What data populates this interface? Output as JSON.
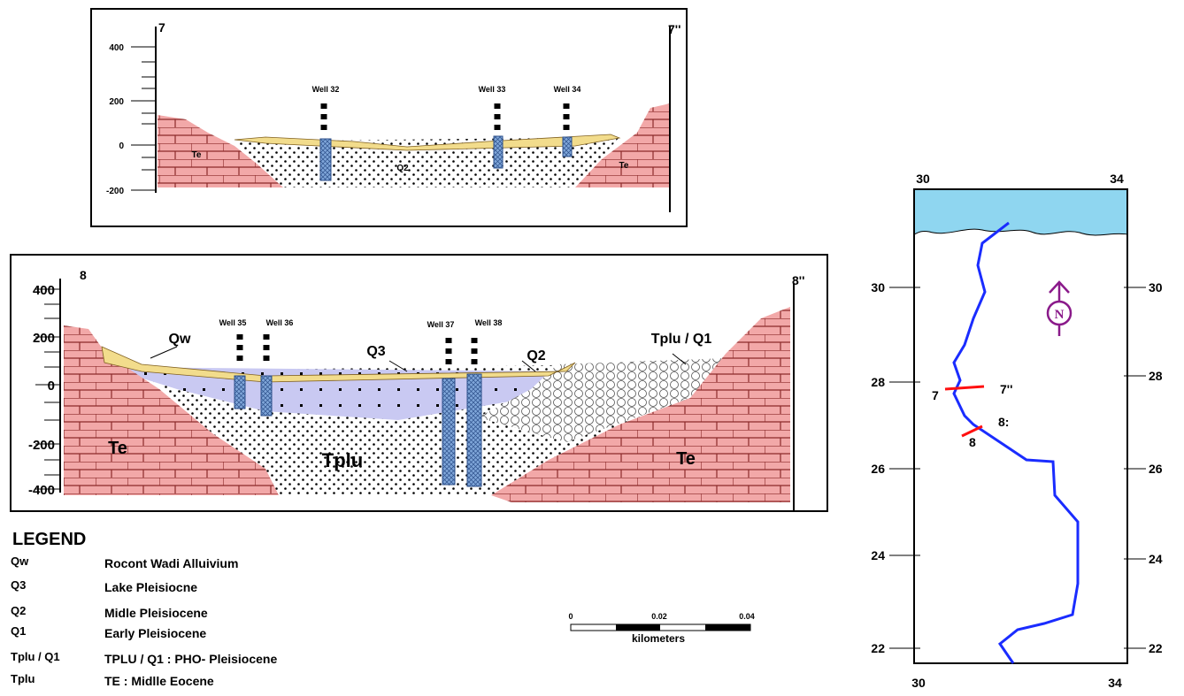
{
  "section_7": {
    "left_label": "7",
    "right_label": "7''",
    "depth_ticks": [
      "400",
      "200",
      "0",
      "-200"
    ],
    "wells": [
      "Well 32",
      "Well 33",
      "Well 34"
    ],
    "units": [
      "Te",
      "Q2",
      "Te"
    ]
  },
  "section_8": {
    "left_label": "8",
    "right_label": "8''",
    "depth_ticks": [
      "400",
      "200",
      "0",
      "-200",
      "-400"
    ],
    "wells": [
      "Well 35",
      "Well 36",
      "Well 37",
      "Well 38"
    ],
    "units": [
      "Qw",
      "Q3",
      "Q2",
      "Tplu / Q1",
      "Te",
      "Tplu",
      "Te"
    ]
  },
  "legend": {
    "title": "LEGEND",
    "entries": [
      {
        "code": "Qw",
        "description": "Rocont Wadi Alluivium"
      },
      {
        "code": "Q3",
        "description": "Lake Pleisiocne"
      },
      {
        "code": "Q2",
        "description": "Midle Pleisiocene"
      },
      {
        "code": "Q1",
        "description": "Early Pleisiocene"
      },
      {
        "code": "Tplu / Q1",
        "description": "TPLU / Q1 : PHO- Pleisiocene"
      },
      {
        "code": "Tplu",
        "description": "TE : Midlle Eocene"
      }
    ]
  },
  "scale_bar": {
    "ticks": [
      "0",
      "0.02",
      "0.04"
    ],
    "unit": "kilometers"
  },
  "map": {
    "top_labels": [
      "30",
      "34"
    ],
    "bottom_labels": [
      "30",
      "34"
    ],
    "left_ticks": [
      "30",
      "28",
      "26",
      "24",
      "22"
    ],
    "right_ticks": [
      "30",
      "28",
      "26",
      "24",
      "22"
    ],
    "sections": [
      "7",
      "7''",
      "8",
      "8:"
    ],
    "north": "N"
  }
}
